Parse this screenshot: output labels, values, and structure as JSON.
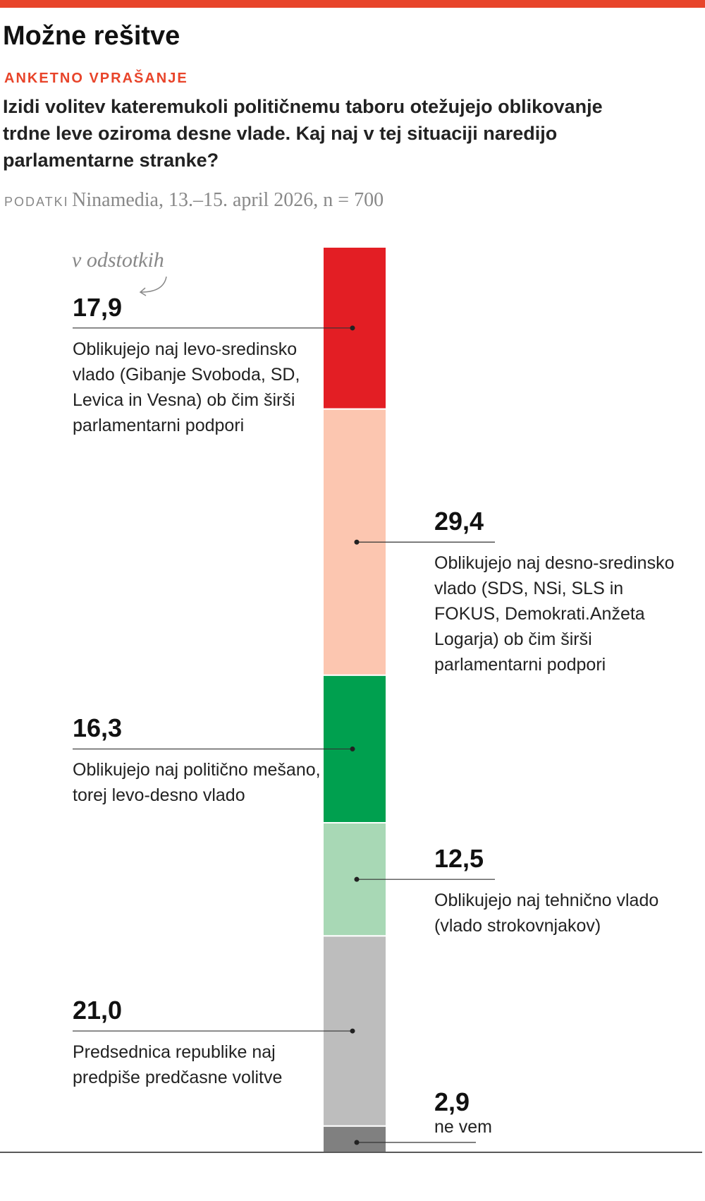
{
  "header": {
    "title": "Možne rešitve",
    "kicker": "ANKETNO VPRAŠANJE",
    "question": "Izidi volitev kateremukoli političnemu taboru otežujejo oblikovanje trdne leve oziroma desne vlade. Kaj naj v tej situaciji naredijo parlamentarne stranke?",
    "source_label": "PODATKI",
    "source": "Ninamedia, 13.–15. april 2026, n = 700"
  },
  "chart_data": {
    "type": "stacked_bar",
    "unit_note": "v odstotkih",
    "categories": [
      "Oblikujejo naj levo-sredinsko vlado (Gibanje Svoboda, SD, Levica in Vesna) ob čim širši parlamentarni podpori",
      "Oblikujejo naj desno-sredinsko vlado (SDS, NSi, SLS in FOKUS, Demokrati.Anžeta Logarja) ob čim širši parlamentarni podpori",
      "Oblikujejo naj politično mešano, torej levo-desno vlado",
      "Oblikujejo naj tehnično vlado (vlado strokovnjakov)",
      "Predsednica republike naj predpiše predčasne volitve",
      "ne vem"
    ],
    "values": [
      17.9,
      29.4,
      16.3,
      12.5,
      21.0,
      2.9
    ],
    "value_labels": [
      "17,9",
      "29,4",
      "16,3",
      "12,5",
      "21,0",
      "2,9"
    ],
    "colors": [
      "#e31e24",
      "#fcc6b0",
      "#00a04f",
      "#a8d8b5",
      "#bdbdbd",
      "#808080"
    ],
    "ylim": [
      0,
      100
    ]
  }
}
